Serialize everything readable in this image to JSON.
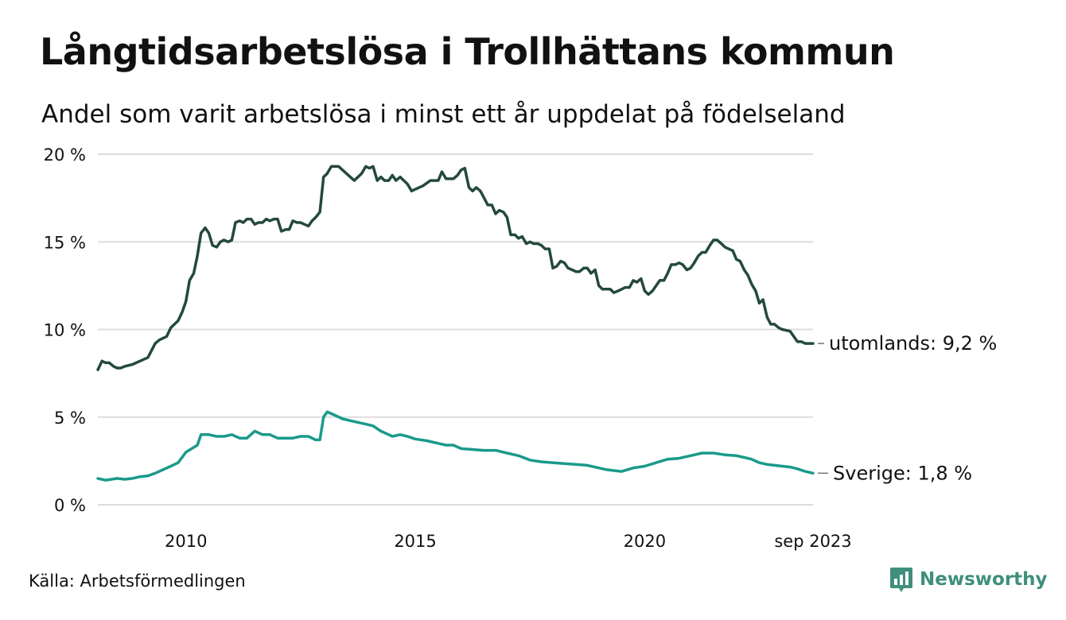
{
  "header": {
    "title": "Långtidsarbetslösa i Trollhättans kommun",
    "subtitle": "Andel som varit arbetslösa i minst ett år uppdelat på födelseland"
  },
  "footer": {
    "source": "Källa: Arbetsförmedlingen",
    "brand": "Newsworthy"
  },
  "colors": {
    "utomlands": "#24493f",
    "sverige": "#1a9a8a",
    "grid": "#dddddd",
    "brand": "#3f8f7c"
  },
  "chart_data": {
    "type": "line",
    "title": "Långtidsarbetslösa i Trollhättans kommun",
    "subtitle": "Andel som varit arbetslösa i minst ett år uppdelat på födelseland",
    "xlabel": "",
    "ylabel": "",
    "xlim": [
      2008.08,
      2023.67
    ],
    "ylim": [
      0,
      20
    ],
    "y_ticks": [
      0,
      5,
      10,
      15,
      20
    ],
    "y_tick_labels": [
      "0 %",
      "5 %",
      "10 %",
      "15 %",
      "20 %"
    ],
    "x_ticks": [
      2010,
      2015,
      2020,
      2023.67
    ],
    "x_tick_labels": [
      "2010",
      "2015",
      "2020",
      "sep 2023"
    ],
    "grid": true,
    "series": [
      {
        "name": "utomlands",
        "end_label": "utomlands: 9,2 %",
        "points": [
          [
            2008.08,
            7.7
          ],
          [
            2008.17,
            8.2
          ],
          [
            2008.25,
            8.1
          ],
          [
            2008.33,
            8.1
          ],
          [
            2008.42,
            7.9
          ],
          [
            2008.5,
            7.8
          ],
          [
            2008.58,
            7.8
          ],
          [
            2008.67,
            7.9
          ],
          [
            2008.83,
            8.0
          ],
          [
            2009.0,
            8.2
          ],
          [
            2009.17,
            8.4
          ],
          [
            2009.33,
            9.2
          ],
          [
            2009.42,
            9.4
          ],
          [
            2009.58,
            9.6
          ],
          [
            2009.67,
            10.1
          ],
          [
            2009.83,
            10.5
          ],
          [
            2009.92,
            11.0
          ],
          [
            2010.0,
            11.6
          ],
          [
            2010.08,
            12.8
          ],
          [
            2010.17,
            13.2
          ],
          [
            2010.25,
            14.2
          ],
          [
            2010.33,
            15.5
          ],
          [
            2010.42,
            15.8
          ],
          [
            2010.5,
            15.5
          ],
          [
            2010.58,
            14.8
          ],
          [
            2010.67,
            14.7
          ],
          [
            2010.75,
            15.0
          ],
          [
            2010.83,
            15.1
          ],
          [
            2010.92,
            15.0
          ],
          [
            2011.0,
            15.1
          ],
          [
            2011.08,
            16.1
          ],
          [
            2011.17,
            16.2
          ],
          [
            2011.25,
            16.1
          ],
          [
            2011.33,
            16.3
          ],
          [
            2011.42,
            16.3
          ],
          [
            2011.5,
            16.0
          ],
          [
            2011.58,
            16.1
          ],
          [
            2011.67,
            16.1
          ],
          [
            2011.75,
            16.3
          ],
          [
            2011.83,
            16.2
          ],
          [
            2011.92,
            16.3
          ],
          [
            2012.0,
            16.3
          ],
          [
            2012.08,
            15.6
          ],
          [
            2012.17,
            15.7
          ],
          [
            2012.25,
            15.7
          ],
          [
            2012.33,
            16.2
          ],
          [
            2012.42,
            16.1
          ],
          [
            2012.5,
            16.1
          ],
          [
            2012.58,
            16.0
          ],
          [
            2012.67,
            15.9
          ],
          [
            2012.75,
            16.2
          ],
          [
            2012.83,
            16.4
          ],
          [
            2012.92,
            16.7
          ],
          [
            2013.0,
            18.7
          ],
          [
            2013.08,
            18.9
          ],
          [
            2013.17,
            19.3
          ],
          [
            2013.33,
            19.3
          ],
          [
            2013.5,
            18.9
          ],
          [
            2013.67,
            18.5
          ],
          [
            2013.83,
            18.9
          ],
          [
            2013.92,
            19.3
          ],
          [
            2014.0,
            19.2
          ],
          [
            2014.08,
            19.3
          ],
          [
            2014.17,
            18.5
          ],
          [
            2014.25,
            18.7
          ],
          [
            2014.33,
            18.5
          ],
          [
            2014.42,
            18.5
          ],
          [
            2014.5,
            18.8
          ],
          [
            2014.58,
            18.5
          ],
          [
            2014.67,
            18.7
          ],
          [
            2014.75,
            18.5
          ],
          [
            2014.83,
            18.3
          ],
          [
            2014.92,
            17.9
          ],
          [
            2015.0,
            18.0
          ],
          [
            2015.17,
            18.2
          ],
          [
            2015.33,
            18.5
          ],
          [
            2015.5,
            18.5
          ],
          [
            2015.58,
            19.0
          ],
          [
            2015.67,
            18.6
          ],
          [
            2015.83,
            18.6
          ],
          [
            2015.92,
            18.8
          ],
          [
            2016.0,
            19.1
          ],
          [
            2016.08,
            19.2
          ],
          [
            2016.17,
            18.1
          ],
          [
            2016.25,
            17.9
          ],
          [
            2016.33,
            18.1
          ],
          [
            2016.42,
            17.9
          ],
          [
            2016.5,
            17.5
          ],
          [
            2016.58,
            17.1
          ],
          [
            2016.67,
            17.1
          ],
          [
            2016.75,
            16.6
          ],
          [
            2016.83,
            16.8
          ],
          [
            2016.92,
            16.7
          ],
          [
            2017.0,
            16.4
          ],
          [
            2017.08,
            15.4
          ],
          [
            2017.17,
            15.4
          ],
          [
            2017.25,
            15.2
          ],
          [
            2017.33,
            15.3
          ],
          [
            2017.42,
            14.9
          ],
          [
            2017.5,
            15.0
          ],
          [
            2017.58,
            14.9
          ],
          [
            2017.67,
            14.9
          ],
          [
            2017.75,
            14.8
          ],
          [
            2017.83,
            14.6
          ],
          [
            2017.92,
            14.6
          ],
          [
            2018.0,
            13.5
          ],
          [
            2018.08,
            13.6
          ],
          [
            2018.17,
            13.9
          ],
          [
            2018.25,
            13.8
          ],
          [
            2018.33,
            13.5
          ],
          [
            2018.42,
            13.4
          ],
          [
            2018.5,
            13.3
          ],
          [
            2018.58,
            13.3
          ],
          [
            2018.67,
            13.5
          ],
          [
            2018.75,
            13.5
          ],
          [
            2018.83,
            13.2
          ],
          [
            2018.92,
            13.4
          ],
          [
            2019.0,
            12.5
          ],
          [
            2019.08,
            12.3
          ],
          [
            2019.17,
            12.3
          ],
          [
            2019.25,
            12.3
          ],
          [
            2019.33,
            12.1
          ],
          [
            2019.42,
            12.2
          ],
          [
            2019.5,
            12.3
          ],
          [
            2019.58,
            12.4
          ],
          [
            2019.67,
            12.4
          ],
          [
            2019.75,
            12.8
          ],
          [
            2019.83,
            12.7
          ],
          [
            2019.92,
            12.9
          ],
          [
            2020.0,
            12.2
          ],
          [
            2020.08,
            12.0
          ],
          [
            2020.17,
            12.2
          ],
          [
            2020.25,
            12.5
          ],
          [
            2020.33,
            12.8
          ],
          [
            2020.42,
            12.8
          ],
          [
            2020.5,
            13.2
          ],
          [
            2020.58,
            13.7
          ],
          [
            2020.67,
            13.7
          ],
          [
            2020.75,
            13.8
          ],
          [
            2020.83,
            13.7
          ],
          [
            2020.92,
            13.4
          ],
          [
            2021.0,
            13.5
          ],
          [
            2021.08,
            13.8
          ],
          [
            2021.17,
            14.2
          ],
          [
            2021.25,
            14.4
          ],
          [
            2021.33,
            14.4
          ],
          [
            2021.42,
            14.8
          ],
          [
            2021.5,
            15.1
          ],
          [
            2021.58,
            15.1
          ],
          [
            2021.67,
            14.9
          ],
          [
            2021.75,
            14.7
          ],
          [
            2021.83,
            14.6
          ],
          [
            2021.92,
            14.5
          ],
          [
            2022.0,
            14.0
          ],
          [
            2022.08,
            13.9
          ],
          [
            2022.17,
            13.4
          ],
          [
            2022.25,
            13.1
          ],
          [
            2022.33,
            12.6
          ],
          [
            2022.42,
            12.2
          ],
          [
            2022.5,
            11.5
          ],
          [
            2022.58,
            11.7
          ],
          [
            2022.67,
            10.7
          ],
          [
            2022.75,
            10.3
          ],
          [
            2022.83,
            10.3
          ],
          [
            2022.92,
            10.1
          ],
          [
            2023.0,
            10.0
          ],
          [
            2023.17,
            9.9
          ],
          [
            2023.25,
            9.6
          ],
          [
            2023.33,
            9.3
          ],
          [
            2023.42,
            9.3
          ],
          [
            2023.5,
            9.2
          ],
          [
            2023.58,
            9.2
          ],
          [
            2023.67,
            9.2
          ]
        ]
      },
      {
        "name": "Sverige",
        "end_label": "Sverige: 1,8 %",
        "points": [
          [
            2008.08,
            1.5
          ],
          [
            2008.25,
            1.4
          ],
          [
            2008.5,
            1.5
          ],
          [
            2008.67,
            1.45
          ],
          [
            2008.83,
            1.5
          ],
          [
            2009.0,
            1.6
          ],
          [
            2009.17,
            1.65
          ],
          [
            2009.33,
            1.8
          ],
          [
            2009.5,
            2.0
          ],
          [
            2009.67,
            2.2
          ],
          [
            2009.83,
            2.4
          ],
          [
            2010.0,
            3.0
          ],
          [
            2010.25,
            3.4
          ],
          [
            2010.33,
            4.0
          ],
          [
            2010.5,
            4.0
          ],
          [
            2010.67,
            3.9
          ],
          [
            2010.83,
            3.9
          ],
          [
            2011.0,
            4.0
          ],
          [
            2011.17,
            3.8
          ],
          [
            2011.33,
            3.8
          ],
          [
            2011.5,
            4.2
          ],
          [
            2011.67,
            4.0
          ],
          [
            2011.83,
            4.0
          ],
          [
            2012.0,
            3.8
          ],
          [
            2012.17,
            3.8
          ],
          [
            2012.33,
            3.8
          ],
          [
            2012.5,
            3.9
          ],
          [
            2012.67,
            3.9
          ],
          [
            2012.83,
            3.7
          ],
          [
            2012.92,
            3.7
          ],
          [
            2013.0,
            5.0
          ],
          [
            2013.08,
            5.3
          ],
          [
            2013.25,
            5.1
          ],
          [
            2013.42,
            4.9
          ],
          [
            2013.58,
            4.8
          ],
          [
            2013.75,
            4.7
          ],
          [
            2013.92,
            4.6
          ],
          [
            2014.08,
            4.5
          ],
          [
            2014.25,
            4.2
          ],
          [
            2014.42,
            4.0
          ],
          [
            2014.5,
            3.9
          ],
          [
            2014.67,
            4.0
          ],
          [
            2014.83,
            3.9
          ],
          [
            2015.0,
            3.75
          ],
          [
            2015.25,
            3.65
          ],
          [
            2015.5,
            3.5
          ],
          [
            2015.67,
            3.4
          ],
          [
            2015.83,
            3.4
          ],
          [
            2016.0,
            3.2
          ],
          [
            2016.25,
            3.15
          ],
          [
            2016.5,
            3.1
          ],
          [
            2016.75,
            3.1
          ],
          [
            2017.0,
            2.95
          ],
          [
            2017.25,
            2.8
          ],
          [
            2017.5,
            2.55
          ],
          [
            2017.75,
            2.45
          ],
          [
            2018.0,
            2.4
          ],
          [
            2018.25,
            2.35
          ],
          [
            2018.5,
            2.3
          ],
          [
            2018.75,
            2.25
          ],
          [
            2019.0,
            2.1
          ],
          [
            2019.17,
            2.0
          ],
          [
            2019.33,
            1.95
          ],
          [
            2019.5,
            1.9
          ],
          [
            2019.75,
            2.1
          ],
          [
            2020.0,
            2.2
          ],
          [
            2020.25,
            2.4
          ],
          [
            2020.5,
            2.6
          ],
          [
            2020.75,
            2.65
          ],
          [
            2021.0,
            2.8
          ],
          [
            2021.25,
            2.95
          ],
          [
            2021.5,
            2.95
          ],
          [
            2021.75,
            2.85
          ],
          [
            2022.0,
            2.8
          ],
          [
            2022.17,
            2.7
          ],
          [
            2022.33,
            2.6
          ],
          [
            2022.5,
            2.4
          ],
          [
            2022.67,
            2.3
          ],
          [
            2022.83,
            2.25
          ],
          [
            2023.0,
            2.2
          ],
          [
            2023.17,
            2.15
          ],
          [
            2023.33,
            2.05
          ],
          [
            2023.5,
            1.9
          ],
          [
            2023.67,
            1.8
          ]
        ]
      }
    ]
  }
}
